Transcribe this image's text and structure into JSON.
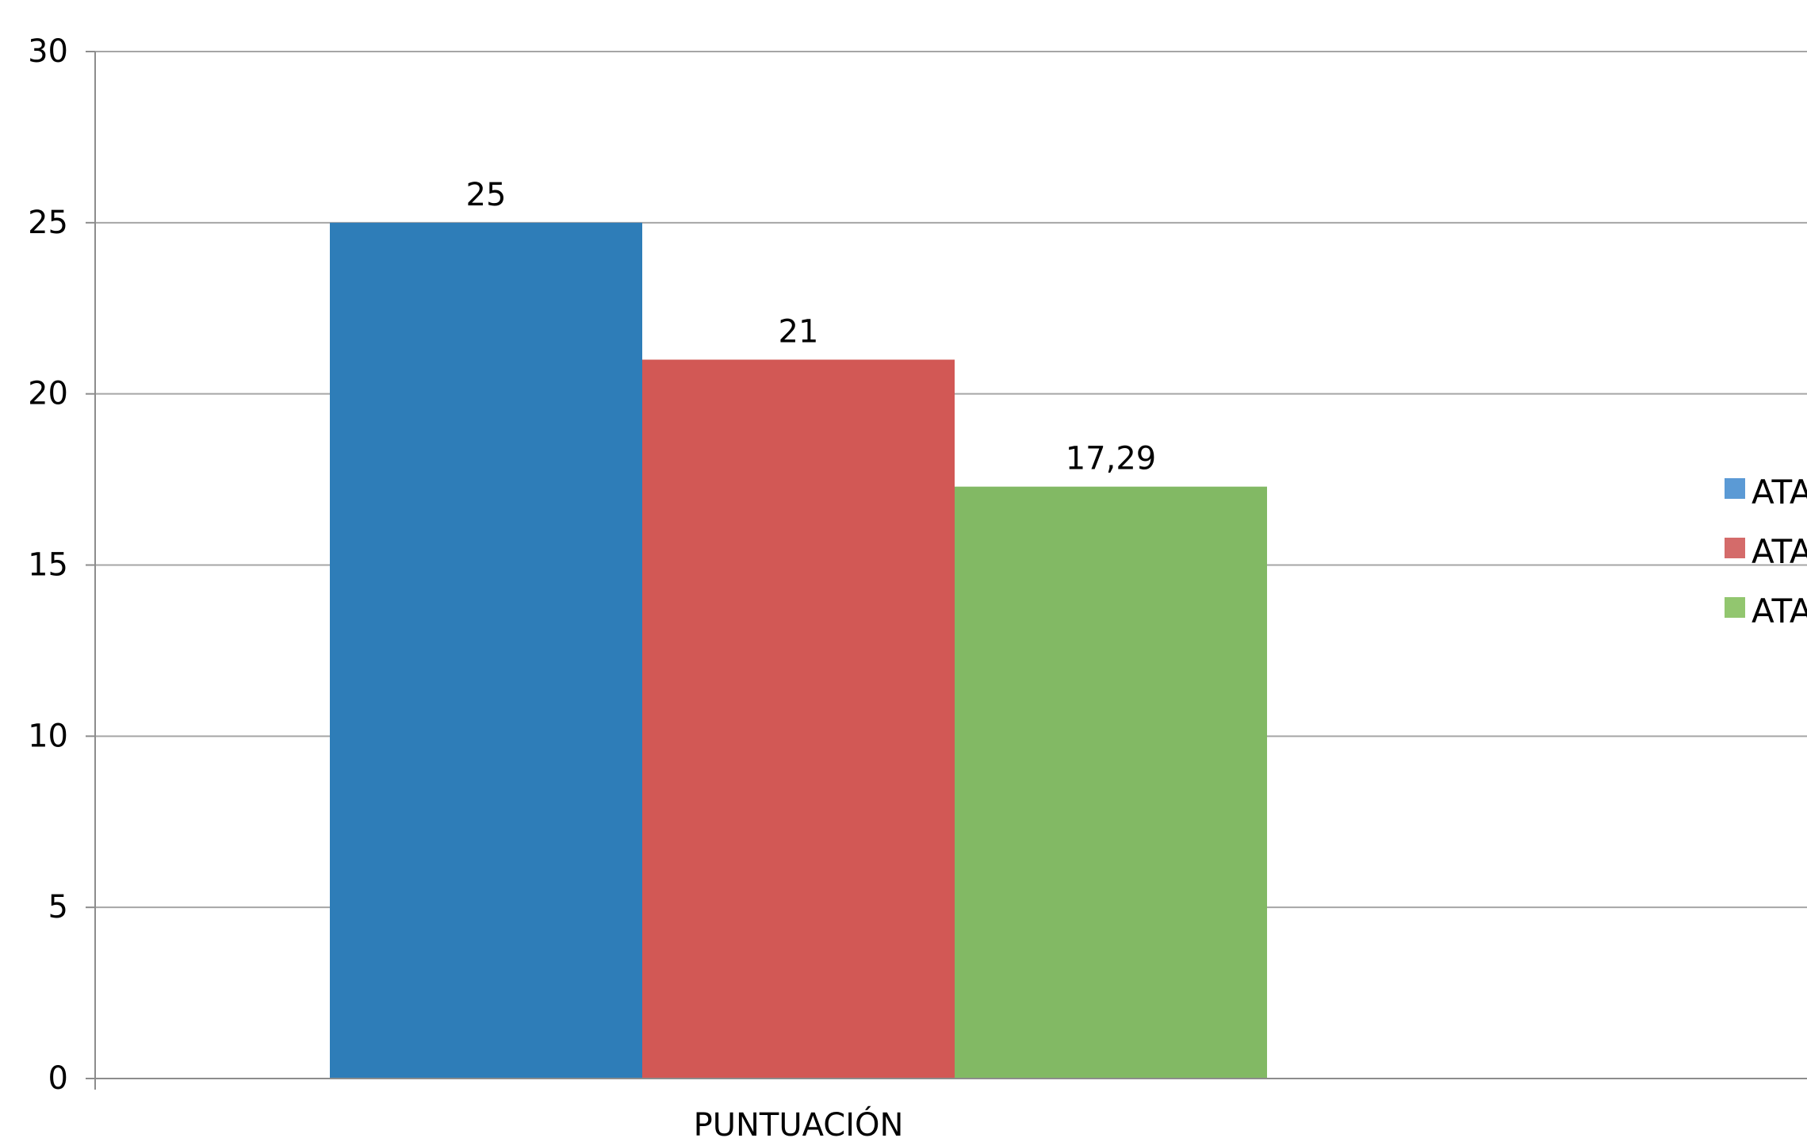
{
  "chart_data": {
    "type": "bar",
    "title": "",
    "xlabel": "",
    "ylabel": "",
    "categories": [
      "PUNTUACIÓN"
    ],
    "series": [
      {
        "name": "ATA",
        "values": [
          25
        ],
        "label": "25",
        "color": "#2E7DB8"
      },
      {
        "name": "ATA",
        "values": [
          21
        ],
        "label": "21",
        "color": "#D25855"
      },
      {
        "name": "ATA",
        "values": [
          17.29
        ],
        "label": "17,29",
        "color": "#82B964"
      }
    ],
    "legend_swatch_colors": [
      "#5B9AD5",
      "#D46B6A",
      "#92C66F"
    ],
    "ylim": [
      0,
      30
    ],
    "yticks": [
      0,
      5,
      10,
      15,
      20,
      25,
      30
    ],
    "grid": true,
    "gridline_color": "#A6A6A6",
    "axis_color": "#8C8C8C",
    "legend_position": "right"
  }
}
